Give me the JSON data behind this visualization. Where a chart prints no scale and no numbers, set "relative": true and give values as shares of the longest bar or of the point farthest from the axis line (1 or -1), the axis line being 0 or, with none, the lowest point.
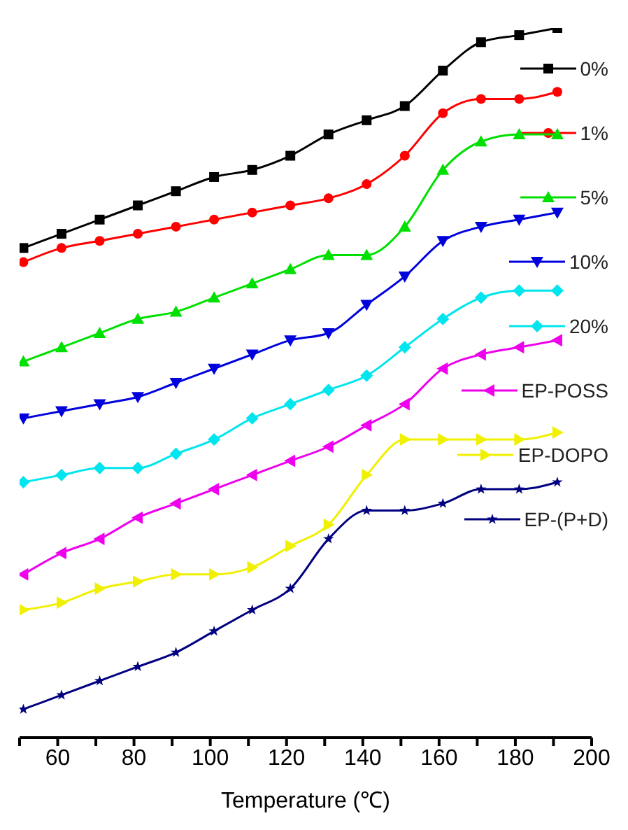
{
  "chart_data": {
    "type": "line",
    "relative": true,
    "xlabel": "Temperature (℃)",
    "xlim": [
      50,
      200
    ],
    "xticks": [
      {
        "value": 50,
        "label": null
      },
      60,
      {
        "value": 70,
        "label": null
      },
      80,
      {
        "value": 90,
        "label": null
      },
      100,
      {
        "value": 110,
        "label": null
      },
      120,
      {
        "value": 130,
        "label": null
      },
      140,
      {
        "value": 150,
        "label": null
      },
      160,
      {
        "value": 170,
        "label": null
      },
      180,
      {
        "value": 190,
        "label": null
      },
      200
    ],
    "x": [
      51,
      61,
      71,
      81,
      91,
      101,
      111,
      121,
      131,
      141,
      151,
      161,
      171,
      181,
      191
    ],
    "legend": "right",
    "grid": false,
    "line_style": "solid",
    "series": [
      {
        "name": "0%",
        "color": "#000000",
        "marker": "square",
        "values": [
          0.69,
          0.71,
          0.73,
          0.75,
          0.77,
          0.79,
          0.8,
          0.82,
          0.85,
          0.87,
          0.89,
          0.94,
          0.98,
          0.99,
          1
        ]
      },
      {
        "name": "1%",
        "color": "#ff0000",
        "marker": "circle",
        "values": [
          0.67,
          0.69,
          0.7,
          0.71,
          0.72,
          0.73,
          0.74,
          0.75,
          0.76,
          0.78,
          0.82,
          0.88,
          0.9,
          0.9,
          0.91
        ]
      },
      {
        "name": "5%",
        "color": "#00e000",
        "marker": "triangle",
        "values": [
          0.53,
          0.55,
          0.57,
          0.59,
          0.6,
          0.62,
          0.64,
          0.66,
          0.68,
          0.68,
          0.72,
          0.8,
          0.84,
          0.85,
          0.85
        ]
      },
      {
        "name": "10%",
        "color": "#0000dd",
        "marker": "triangle-down",
        "values": [
          0.45,
          0.46,
          0.47,
          0.48,
          0.5,
          0.52,
          0.54,
          0.56,
          0.57,
          0.61,
          0.65,
          0.7,
          0.72,
          0.73,
          0.74
        ]
      },
      {
        "name": "20%",
        "color": "#00e5ee",
        "marker": "diamond",
        "values": [
          0.36,
          0.37,
          0.38,
          0.38,
          0.4,
          0.42,
          0.45,
          0.47,
          0.49,
          0.51,
          0.55,
          0.59,
          0.62,
          0.63,
          0.63
        ]
      },
      {
        "name": "EP-POSS",
        "color": "#ee00ee",
        "marker": "triangle-left",
        "values": [
          0.23,
          0.26,
          0.28,
          0.31,
          0.33,
          0.35,
          0.37,
          0.39,
          0.41,
          0.44,
          0.47,
          0.52,
          0.54,
          0.55,
          0.56
        ]
      },
      {
        "name": "EP-DOPO",
        "color": "#f0f000",
        "marker": "triangle-right",
        "values": [
          0.18,
          0.19,
          0.21,
          0.22,
          0.23,
          0.23,
          0.24,
          0.27,
          0.3,
          0.37,
          0.42,
          0.42,
          0.42,
          0.42,
          0.43
        ]
      },
      {
        "name": "EP-(P+D)",
        "color": "#000080",
        "marker": "star",
        "values": [
          0.04,
          0.06,
          0.08,
          0.1,
          0.12,
          0.15,
          0.18,
          0.21,
          0.28,
          0.32,
          0.32,
          0.33,
          0.35,
          0.35,
          0.36
        ]
      }
    ]
  }
}
